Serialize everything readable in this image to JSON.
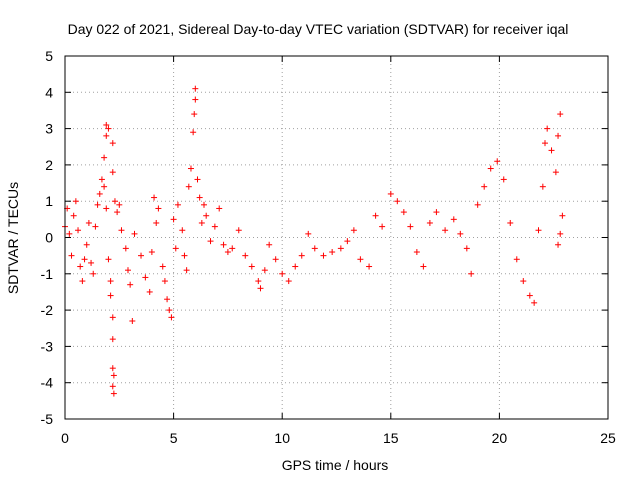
{
  "chart_data": {
    "type": "scatter",
    "title": "Day 022 of 2021, Sidereal Day-to-day VTEC variation (SDTVAR) for receiver iqal",
    "xlabel": "GPS time / hours",
    "ylabel": "SDTVAR / TECUs",
    "xlim": [
      0,
      25
    ],
    "ylim": [
      -5,
      5
    ],
    "xticks": [
      0,
      5,
      10,
      15,
      20,
      25
    ],
    "yticks": [
      -5,
      -4,
      -3,
      -2,
      -1,
      0,
      1,
      2,
      3,
      4,
      5
    ],
    "grid": true,
    "marker": "+",
    "color": "#ff0000",
    "series": [
      {
        "name": "SDTVAR",
        "points": [
          [
            0.0,
            0.3
          ],
          [
            0.1,
            0.8
          ],
          [
            0.2,
            0.1
          ],
          [
            0.3,
            -0.5
          ],
          [
            0.4,
            0.6
          ],
          [
            0.5,
            1.0
          ],
          [
            0.6,
            0.2
          ],
          [
            0.7,
            -0.8
          ],
          [
            0.8,
            -1.2
          ],
          [
            0.9,
            -0.6
          ],
          [
            1.0,
            -0.2
          ],
          [
            1.1,
            0.4
          ],
          [
            1.2,
            -0.7
          ],
          [
            1.3,
            -1.0
          ],
          [
            1.4,
            0.3
          ],
          [
            1.5,
            0.9
          ],
          [
            1.6,
            1.2
          ],
          [
            1.7,
            1.6
          ],
          [
            1.8,
            1.4
          ],
          [
            1.9,
            0.8
          ],
          [
            1.8,
            2.2
          ],
          [
            1.9,
            2.8
          ],
          [
            2.0,
            3.0
          ],
          [
            1.9,
            3.1
          ],
          [
            2.0,
            -0.6
          ],
          [
            2.1,
            -1.2
          ],
          [
            2.1,
            -1.6
          ],
          [
            2.2,
            2.6
          ],
          [
            2.2,
            1.8
          ],
          [
            2.2,
            -2.2
          ],
          [
            2.2,
            -2.8
          ],
          [
            2.2,
            -3.6
          ],
          [
            2.25,
            -3.8
          ],
          [
            2.2,
            -4.1
          ],
          [
            2.25,
            -4.3
          ],
          [
            2.3,
            1.0
          ],
          [
            2.4,
            0.7
          ],
          [
            2.5,
            0.9
          ],
          [
            2.6,
            0.2
          ],
          [
            2.8,
            -0.3
          ],
          [
            2.9,
            -0.9
          ],
          [
            3.0,
            -1.3
          ],
          [
            3.1,
            -2.3
          ],
          [
            3.2,
            0.1
          ],
          [
            3.5,
            -0.5
          ],
          [
            3.7,
            -1.1
          ],
          [
            3.9,
            -1.5
          ],
          [
            4.0,
            -0.4
          ],
          [
            4.1,
            1.1
          ],
          [
            4.2,
            0.4
          ],
          [
            4.3,
            0.8
          ],
          [
            4.5,
            -0.8
          ],
          [
            4.6,
            -1.2
          ],
          [
            4.7,
            -1.7
          ],
          [
            4.8,
            -2.0
          ],
          [
            4.9,
            -2.2
          ],
          [
            5.0,
            0.5
          ],
          [
            5.1,
            -0.3
          ],
          [
            5.2,
            0.9
          ],
          [
            5.4,
            0.2
          ],
          [
            5.5,
            -0.5
          ],
          [
            5.6,
            -0.9
          ],
          [
            5.7,
            1.4
          ],
          [
            5.8,
            1.9
          ],
          [
            5.9,
            2.9
          ],
          [
            5.95,
            3.4
          ],
          [
            6.0,
            3.8
          ],
          [
            6.0,
            4.1
          ],
          [
            6.1,
            1.6
          ],
          [
            6.2,
            1.1
          ],
          [
            6.3,
            0.4
          ],
          [
            6.4,
            0.9
          ],
          [
            6.5,
            0.6
          ],
          [
            6.7,
            -0.1
          ],
          [
            6.9,
            0.3
          ],
          [
            7.1,
            0.8
          ],
          [
            7.3,
            -0.2
          ],
          [
            7.5,
            -0.4
          ],
          [
            7.7,
            -0.3
          ],
          [
            8.0,
            0.2
          ],
          [
            8.3,
            -0.5
          ],
          [
            8.6,
            -0.8
          ],
          [
            8.9,
            -1.2
          ],
          [
            9.0,
            -1.4
          ],
          [
            9.2,
            -0.9
          ],
          [
            9.4,
            -0.2
          ],
          [
            9.7,
            -0.6
          ],
          [
            10.0,
            -1.0
          ],
          [
            10.3,
            -1.2
          ],
          [
            10.6,
            -0.8
          ],
          [
            10.9,
            -0.5
          ],
          [
            11.2,
            0.1
          ],
          [
            11.5,
            -0.3
          ],
          [
            11.9,
            -0.5
          ],
          [
            12.3,
            -0.4
          ],
          [
            12.7,
            -0.3
          ],
          [
            13.0,
            -0.1
          ],
          [
            13.3,
            0.2
          ],
          [
            13.6,
            -0.6
          ],
          [
            14.0,
            -0.8
          ],
          [
            14.3,
            0.6
          ],
          [
            14.6,
            0.3
          ],
          [
            15.0,
            1.2
          ],
          [
            15.3,
            1.0
          ],
          [
            15.6,
            0.7
          ],
          [
            15.9,
            0.3
          ],
          [
            16.2,
            -0.4
          ],
          [
            16.5,
            -0.8
          ],
          [
            16.8,
            0.4
          ],
          [
            17.1,
            0.7
          ],
          [
            17.5,
            0.2
          ],
          [
            17.9,
            0.5
          ],
          [
            18.2,
            0.1
          ],
          [
            18.5,
            -0.3
          ],
          [
            18.7,
            -1.0
          ],
          [
            19.0,
            0.9
          ],
          [
            19.3,
            1.4
          ],
          [
            19.6,
            1.9
          ],
          [
            19.9,
            2.1
          ],
          [
            20.2,
            1.6
          ],
          [
            20.5,
            0.4
          ],
          [
            20.8,
            -0.6
          ],
          [
            21.1,
            -1.2
          ],
          [
            21.4,
            -1.6
          ],
          [
            21.6,
            -1.8
          ],
          [
            21.8,
            0.2
          ],
          [
            22.0,
            1.4
          ],
          [
            22.1,
            2.6
          ],
          [
            22.2,
            3.0
          ],
          [
            22.4,
            2.4
          ],
          [
            22.6,
            1.8
          ],
          [
            22.7,
            2.8
          ],
          [
            22.8,
            3.4
          ],
          [
            22.9,
            0.6
          ],
          [
            22.7,
            -0.2
          ],
          [
            22.8,
            0.1
          ]
        ]
      }
    ]
  }
}
